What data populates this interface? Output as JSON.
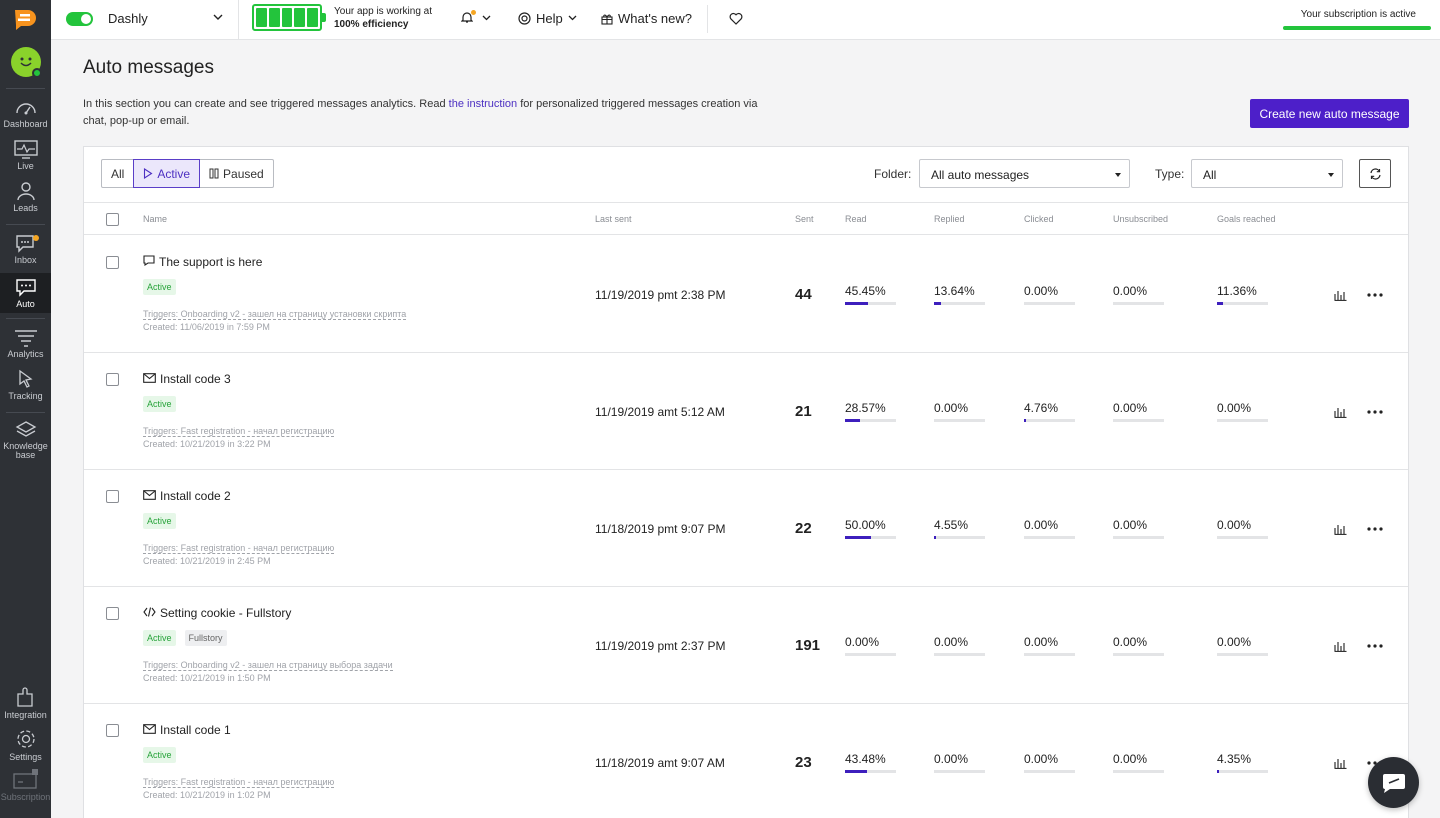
{
  "colors": {
    "accent": "#4d1fc9",
    "success": "#23c43c",
    "sidebar": "#2e3136",
    "bar_fill": "#3d1fbd"
  },
  "sidebar": {
    "items": [
      {
        "label": "Dashboard",
        "icon": "dashboard-icon"
      },
      {
        "label": "Live",
        "icon": "live-icon"
      },
      {
        "label": "Leads",
        "icon": "leads-icon"
      },
      {
        "label": "Inbox",
        "icon": "inbox-icon"
      },
      {
        "label": "Auto",
        "icon": "auto-icon"
      },
      {
        "label": "Analytics",
        "icon": "analytics-icon"
      },
      {
        "label": "Tracking",
        "icon": "tracking-icon"
      },
      {
        "label": "Knowledge",
        "label2": "base",
        "icon": "knowledge-base-icon"
      },
      {
        "label": "Integration",
        "icon": "integration-icon"
      },
      {
        "label": "Settings",
        "icon": "settings-icon"
      },
      {
        "label": "Subscription",
        "icon": "subscription-icon"
      }
    ]
  },
  "topbar": {
    "app_name": "Dashly",
    "efficiency_line1": "Your app is working at",
    "efficiency_line2": "100% efficiency",
    "help": "Help",
    "whats_new": "What's new?",
    "subscription": "Your subscription is active"
  },
  "page": {
    "title": "Auto messages",
    "desc_before": "In this section you can create and see triggered messages analytics. Read ",
    "desc_link": "the instruction",
    "desc_after": " for personalized triggered messages creation via chat, pop-up or email.",
    "create_button": "Create new auto message"
  },
  "filters": {
    "all": "All",
    "active": "Active",
    "paused": "Paused",
    "folder_label": "Folder:",
    "folder_value": "All auto messages",
    "type_label": "Type:",
    "type_value": "All"
  },
  "table": {
    "headers": [
      "Name",
      "Last sent",
      "Sent",
      "Read",
      "Replied",
      "Clicked",
      "Unsubscribed",
      "Goals reached"
    ],
    "rows": [
      {
        "name": "The support is here",
        "type_icon": "chat-icon",
        "status": "Active",
        "folder": null,
        "triggers": "Triggers: Onboarding v2 - зашел на страницу установки скрипта",
        "created": "Created: 11/06/2019 in 7:59 PM",
        "last_sent": "11/19/2019 pmt 2:38 PM",
        "sent": "44",
        "read": "45.45%",
        "read_v": 45.45,
        "replied": "13.64%",
        "replied_v": 13.64,
        "clicked": "0.00%",
        "clicked_v": 0,
        "unsubscribed": "0.00%",
        "unsubscribed_v": 0,
        "goals": "11.36%",
        "goals_v": 11.36
      },
      {
        "name": "Install code 3",
        "type_icon": "email-icon",
        "status": "Active",
        "folder": null,
        "triggers": "Triggers: Fast registration - начал регистрацию",
        "created": "Created: 10/21/2019 in 3:22 PM",
        "last_sent": "11/19/2019 amt 5:12 AM",
        "sent": "21",
        "read": "28.57%",
        "read_v": 28.57,
        "replied": "0.00%",
        "replied_v": 0,
        "clicked": "4.76%",
        "clicked_v": 4.76,
        "unsubscribed": "0.00%",
        "unsubscribed_v": 0,
        "goals": "0.00%",
        "goals_v": 0
      },
      {
        "name": "Install code 2",
        "type_icon": "email-icon",
        "status": "Active",
        "folder": null,
        "triggers": "Triggers: Fast registration - начал регистрацию",
        "created": "Created: 10/21/2019 in 2:45 PM",
        "last_sent": "11/18/2019 pmt 9:07 PM",
        "sent": "22",
        "read": "50.00%",
        "read_v": 50,
        "replied": "4.55%",
        "replied_v": 4.55,
        "clicked": "0.00%",
        "clicked_v": 0,
        "unsubscribed": "0.00%",
        "unsubscribed_v": 0,
        "goals": "0.00%",
        "goals_v": 0
      },
      {
        "name": "Setting cookie - Fullstory",
        "type_icon": "code-icon",
        "status": "Active",
        "folder": "Fullstory",
        "triggers": "Triggers: Onboarding v2 - зашел на страницу выбора задачи",
        "created": "Created: 10/21/2019 in 1:50 PM",
        "last_sent": "11/19/2019 pmt 2:37 PM",
        "sent": "191",
        "read": "0.00%",
        "read_v": 0,
        "replied": "0.00%",
        "replied_v": 0,
        "clicked": "0.00%",
        "clicked_v": 0,
        "unsubscribed": "0.00%",
        "unsubscribed_v": 0,
        "goals": "0.00%",
        "goals_v": 0
      },
      {
        "name": "Install code 1",
        "type_icon": "email-icon",
        "status": "Active",
        "folder": null,
        "triggers": "Triggers: Fast registration - начал регистрацию",
        "created": "Created: 10/21/2019 in 1:02 PM",
        "last_sent": "11/18/2019 amt 9:07 AM",
        "sent": "23",
        "read": "43.48%",
        "read_v": 43.48,
        "replied": "0.00%",
        "replied_v": 0,
        "clicked": "0.00%",
        "clicked_v": 0,
        "unsubscribed": "0.00%",
        "unsubscribed_v": 0,
        "goals": "4.35%",
        "goals_v": 4.35
      }
    ]
  }
}
